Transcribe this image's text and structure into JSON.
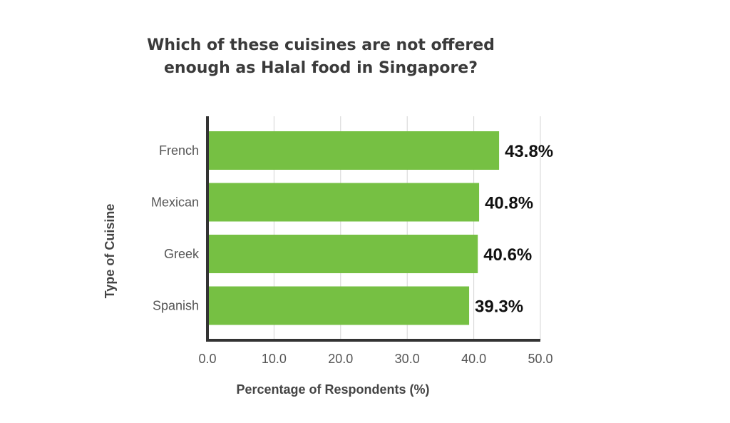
{
  "chart_data": {
    "type": "bar",
    "orientation": "horizontal",
    "title_lines": [
      "Which of these cuisines are not offered",
      "enough as Halal food in Singapore?"
    ],
    "categories": [
      "French",
      "Mexican",
      "Greek",
      "Spanish"
    ],
    "values": [
      43.8,
      40.8,
      40.6,
      39.3
    ],
    "value_labels": [
      "43.8%",
      "40.8%",
      "40.6%",
      "39.3%"
    ],
    "xlabel": "Percentage of Respondents (%)",
    "ylabel": "Type of Cuisine",
    "xlim": [
      0,
      50
    ],
    "xticks": [
      0,
      10,
      20,
      30,
      40,
      50
    ],
    "xtick_labels": [
      "0.0",
      "10.0",
      "20.0",
      "30.0",
      "40.0",
      "50.0"
    ],
    "grid": true,
    "bar_color": "#76c043",
    "axis_color": "#333333",
    "grid_color": "#d4d4d4"
  }
}
